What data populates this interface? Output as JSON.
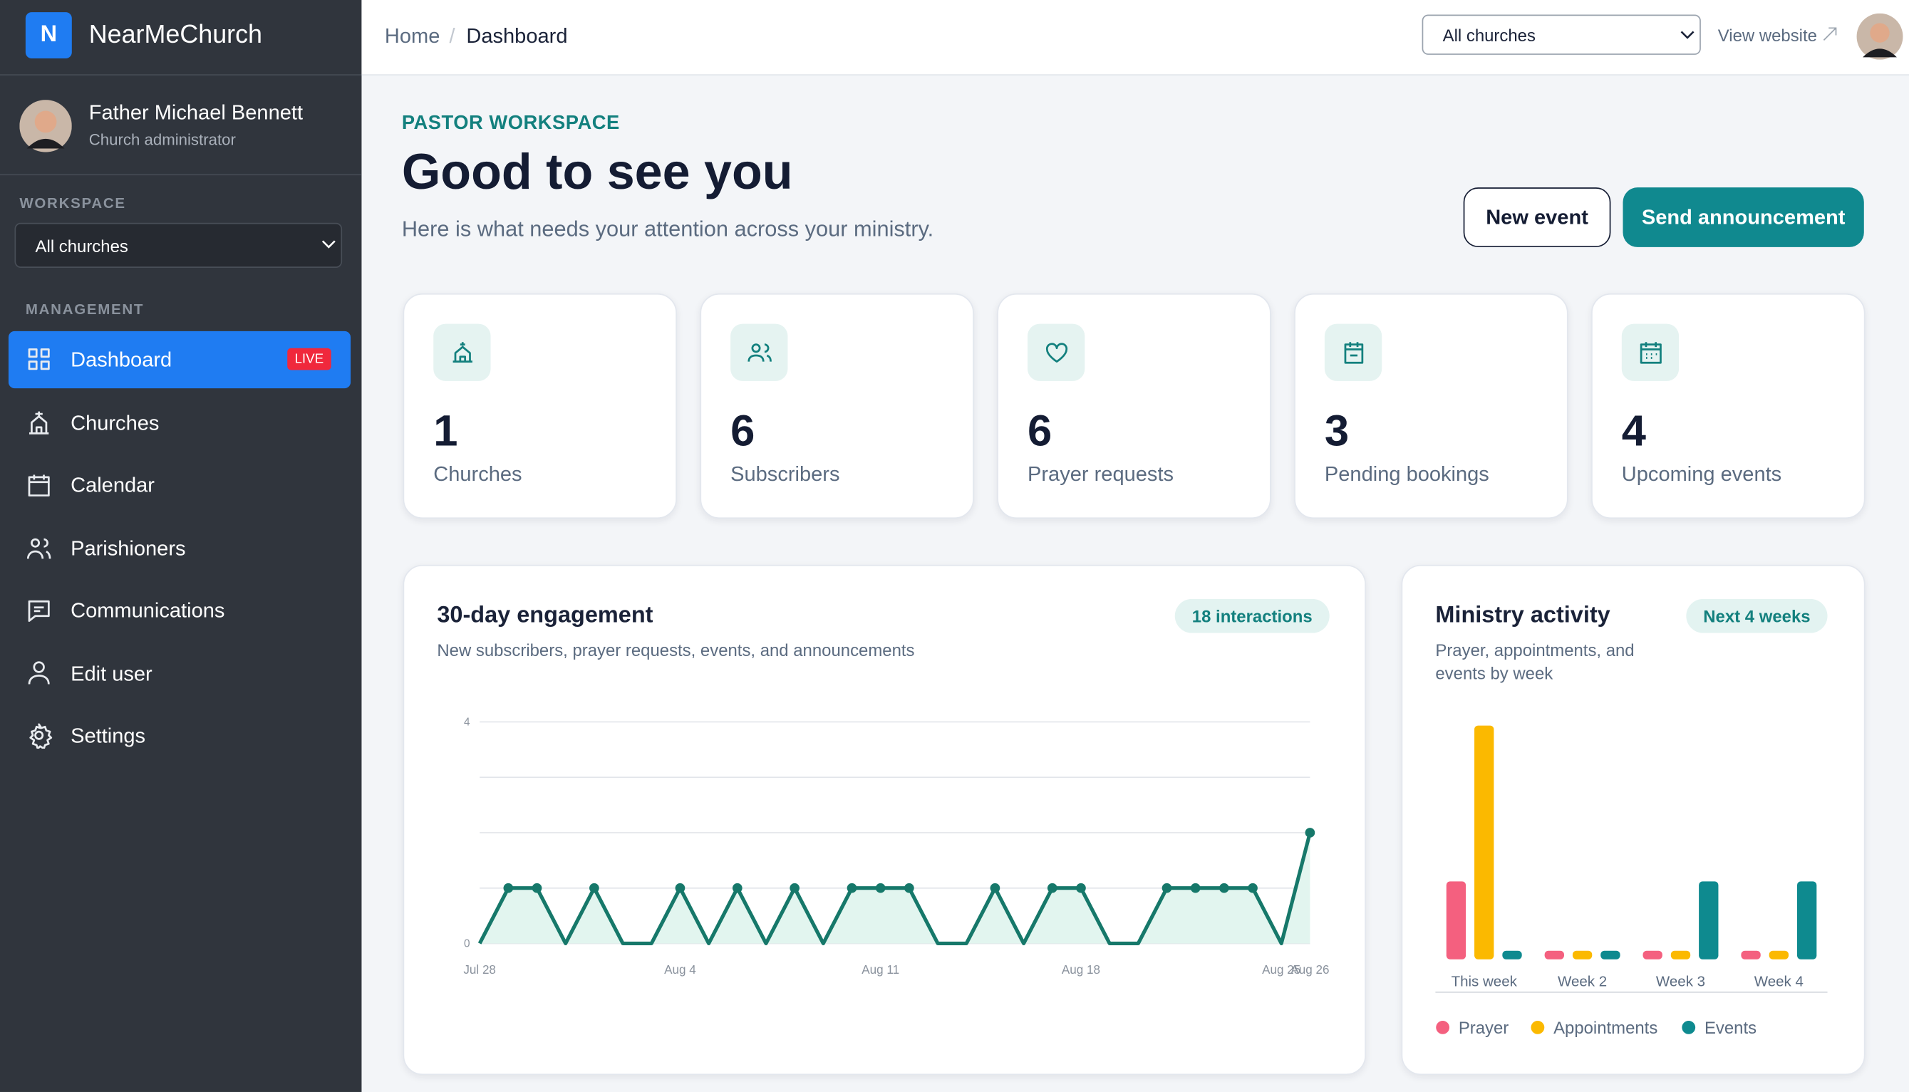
{
  "brand": {
    "logo": "N",
    "name": "NearMeChurch"
  },
  "user": {
    "name": "Father Michael Bennett",
    "role": "Church administrator"
  },
  "sidebar": {
    "workspace_label": "WORKSPACE",
    "workspace_select": "All churches",
    "management_label": "MANAGEMENT",
    "nav": [
      {
        "label": "Dashboard",
        "badge": "LIVE"
      },
      {
        "label": "Churches"
      },
      {
        "label": "Calendar"
      },
      {
        "label": "Parishioners"
      },
      {
        "label": "Communications"
      },
      {
        "label": "Edit user"
      },
      {
        "label": "Settings"
      }
    ]
  },
  "topbar": {
    "breadcrumb": [
      "Home",
      "Dashboard"
    ],
    "select": "All churches",
    "view_website": "View website"
  },
  "hero": {
    "eyebrow": "PASTOR WORKSPACE",
    "title": "Good to see you",
    "subtitle": "Here is what needs your attention across your ministry.",
    "buttons": [
      "New event",
      "Send announcement"
    ]
  },
  "stats": [
    {
      "value": 1,
      "label": "Churches"
    },
    {
      "value": 6,
      "label": "Subscribers"
    },
    {
      "value": 6,
      "label": "Prayer requests"
    },
    {
      "value": 3,
      "label": "Pending bookings"
    },
    {
      "value": 4,
      "label": "Upcoming events"
    }
  ],
  "engagement_chart": {
    "type": "line",
    "title": "30-day engagement",
    "subtitle": "New subscribers, prayer requests, events, and announcements",
    "badge": "18 interactions",
    "x": [
      "Jul 28",
      null,
      null,
      null,
      null,
      null,
      null,
      "Aug 4",
      null,
      null,
      null,
      null,
      null,
      null,
      "Aug 11",
      null,
      null,
      null,
      null,
      null,
      null,
      "Aug 18",
      null,
      null,
      null,
      null,
      null,
      null,
      "Aug 25",
      "Aug 26"
    ],
    "values": [
      0,
      1,
      1,
      0,
      1,
      0,
      0,
      1,
      0,
      1,
      0,
      1,
      0,
      1,
      1,
      1,
      0,
      0,
      1,
      0,
      1,
      1,
      0,
      0,
      1,
      1,
      1,
      1,
      0,
      2
    ],
    "color": "#16786a",
    "ylim": [
      0,
      4
    ],
    "yticks": [
      0,
      4
    ],
    "gridlines": [
      0,
      1,
      2,
      3,
      4
    ]
  },
  "ministry_chart": {
    "type": "bar",
    "title": "Ministry activity",
    "subtitle": [
      "Prayer, appointments, and",
      "events by week"
    ],
    "badge": "Next 4 weeks",
    "categories": [
      "This week",
      "Week 2",
      "Week 3",
      "Week 4"
    ],
    "ylim": [
      0,
      3
    ],
    "series": [
      {
        "name": "Prayer",
        "color": "#f4607f",
        "values": [
          1,
          0,
          0,
          0
        ]
      },
      {
        "name": "Appointments",
        "color": "#fbb900",
        "values": [
          3,
          0,
          0,
          0
        ]
      },
      {
        "name": "Events",
        "color": "#0e8a8f",
        "values": [
          0,
          0,
          1,
          1
        ]
      }
    ]
  }
}
